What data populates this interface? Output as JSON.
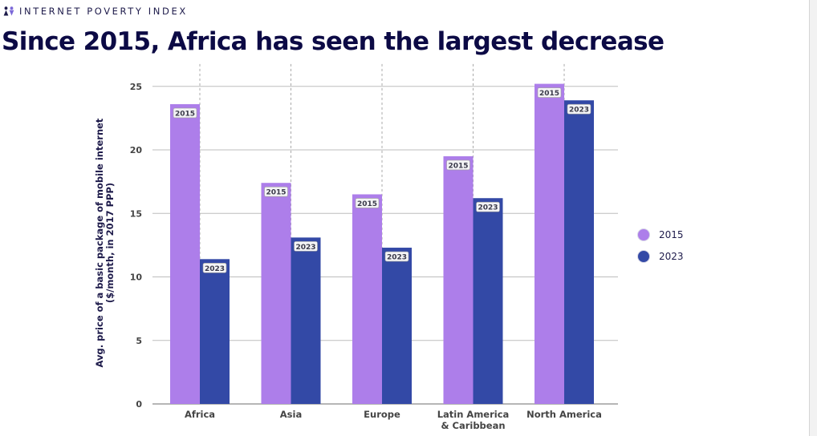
{
  "header": {
    "brand": "INTERNET POVERTY INDEX",
    "logo_icon": "people-icon"
  },
  "title": "Since 2015, Africa has seen the largest decrease",
  "chart_data": {
    "type": "bar",
    "title": "Since 2015, Africa has seen the largest decrease",
    "ylabel_lines": [
      "Avg. price of a basic package of mobile internet",
      "($/month, in 2017 PPP)"
    ],
    "xlabel": "",
    "ylim": [
      0,
      26
    ],
    "yticks": [
      0,
      5,
      10,
      15,
      20,
      25
    ],
    "grid": true,
    "legend_position": "right",
    "categories": [
      [
        "Africa"
      ],
      [
        "Asia"
      ],
      [
        "Europe"
      ],
      [
        "Latin America",
        "& Caribbean"
      ],
      [
        "North America"
      ]
    ],
    "series": [
      {
        "name": "2015",
        "color": "#ad7eea",
        "values": [
          23.6,
          17.4,
          16.5,
          19.5,
          25.2
        ]
      },
      {
        "name": "2023",
        "color": "#3349a6",
        "values": [
          11.4,
          13.1,
          12.3,
          16.2,
          23.9
        ]
      }
    ]
  },
  "legend": [
    {
      "label": "2015",
      "color": "#ad7eea"
    },
    {
      "label": "2023",
      "color": "#3349a6"
    }
  ]
}
